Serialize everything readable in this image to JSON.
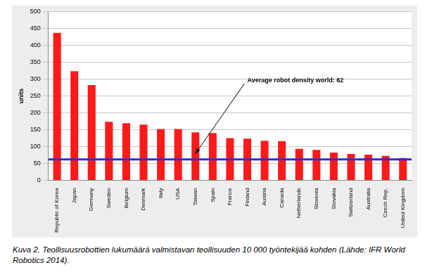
{
  "chart_data": {
    "type": "bar",
    "categories": [
      "Republic of Korea",
      "Japan",
      "Germany",
      "Sweden",
      "Belgium",
      "Denmark",
      "Italy",
      "USA",
      "Taiwan",
      "Spain",
      "France",
      "Finland",
      "Austria",
      "Canada",
      "Netherlands",
      "Slovenia",
      "Slovakia",
      "Switzerland",
      "Australia",
      "Czech Rep.",
      "United Kingdom"
    ],
    "values": [
      437,
      323,
      282,
      173,
      169,
      165,
      152,
      152,
      142,
      140,
      125,
      123,
      117,
      116,
      93,
      90,
      82,
      78,
      76,
      72,
      66
    ],
    "color": "#ff1a1a",
    "y_label": "units",
    "ylim": [
      0,
      500
    ],
    "yticks": [
      0,
      50,
      100,
      150,
      200,
      250,
      300,
      350,
      400,
      450,
      500
    ],
    "grid": true,
    "reference_line": {
      "value": 62,
      "label": "Average robot density world: 62",
      "color": "#2e2ed6"
    },
    "caption": "Kuva 2. Teollisuusrobottien lukumäärä valmistavan teollisuuden 10 000 työntekijää kohden (Lähde: IFR World Robotics 2014)."
  }
}
